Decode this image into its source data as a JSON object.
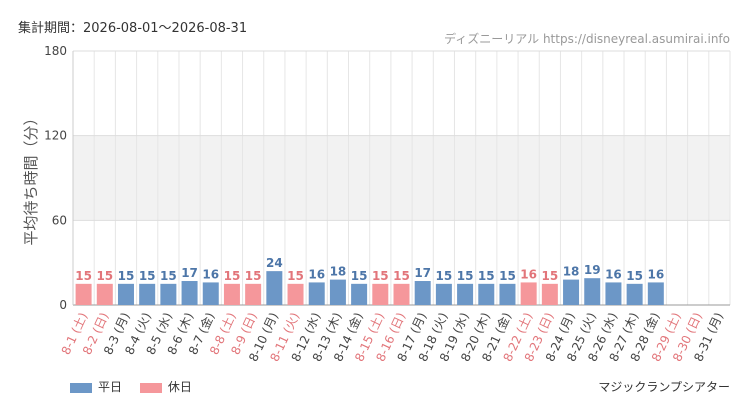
{
  "header": {
    "period": "集計期間：2026-08-01〜2026-08-31",
    "source": "ディズニーリアル https://disneyreal.asumirai.info"
  },
  "footer": {
    "attraction": "マジックランプシアター"
  },
  "colors": {
    "weekday": "#6c97c7",
    "holiday": "#f5979b",
    "weekday_label": "#4d76a8",
    "holiday_label": "#e2757a",
    "band": "#f2f2f2"
  },
  "chart_data": {
    "type": "bar",
    "title": "",
    "ylabel": "平均待ち時間（分）",
    "xlabel": "",
    "ylim": [
      0,
      180
    ],
    "yticks": [
      0,
      60,
      120,
      180
    ],
    "grid": true,
    "legend_position": "bottom-left",
    "legend": [
      {
        "label": "平日",
        "kind": "weekday"
      },
      {
        "label": "休日",
        "kind": "holiday"
      }
    ],
    "categories": [
      "8-1 (土)",
      "8-2 (日)",
      "8-3 (月)",
      "8-4 (火)",
      "8-5 (水)",
      "8-6 (木)",
      "8-7 (金)",
      "8-8 (土)",
      "8-9 (日)",
      "8-10 (月)",
      "8-11 (火)",
      "8-12 (水)",
      "8-13 (木)",
      "8-14 (金)",
      "8-15 (土)",
      "8-16 (日)",
      "8-17 (月)",
      "8-18 (火)",
      "8-19 (水)",
      "8-20 (木)",
      "8-21 (金)",
      "8-22 (土)",
      "8-23 (日)",
      "8-24 (月)",
      "8-25 (火)",
      "8-26 (水)",
      "8-27 (木)",
      "8-28 (金)",
      "8-29 (土)",
      "8-30 (日)",
      "8-31 (月)"
    ],
    "values": [
      15,
      15,
      15,
      15,
      15,
      17,
      16,
      15,
      15,
      24,
      15,
      16,
      18,
      15,
      15,
      15,
      17,
      15,
      15,
      15,
      15,
      16,
      15,
      18,
      19,
      16,
      15,
      16,
      null,
      null,
      null
    ],
    "day_types": [
      "holiday",
      "holiday",
      "weekday",
      "weekday",
      "weekday",
      "weekday",
      "weekday",
      "holiday",
      "holiday",
      "weekday",
      "holiday",
      "weekday",
      "weekday",
      "weekday",
      "holiday",
      "holiday",
      "weekday",
      "weekday",
      "weekday",
      "weekday",
      "weekday",
      "holiday",
      "holiday",
      "weekday",
      "weekday",
      "weekday",
      "weekday",
      "weekday",
      "holiday",
      "holiday",
      "weekday"
    ]
  }
}
